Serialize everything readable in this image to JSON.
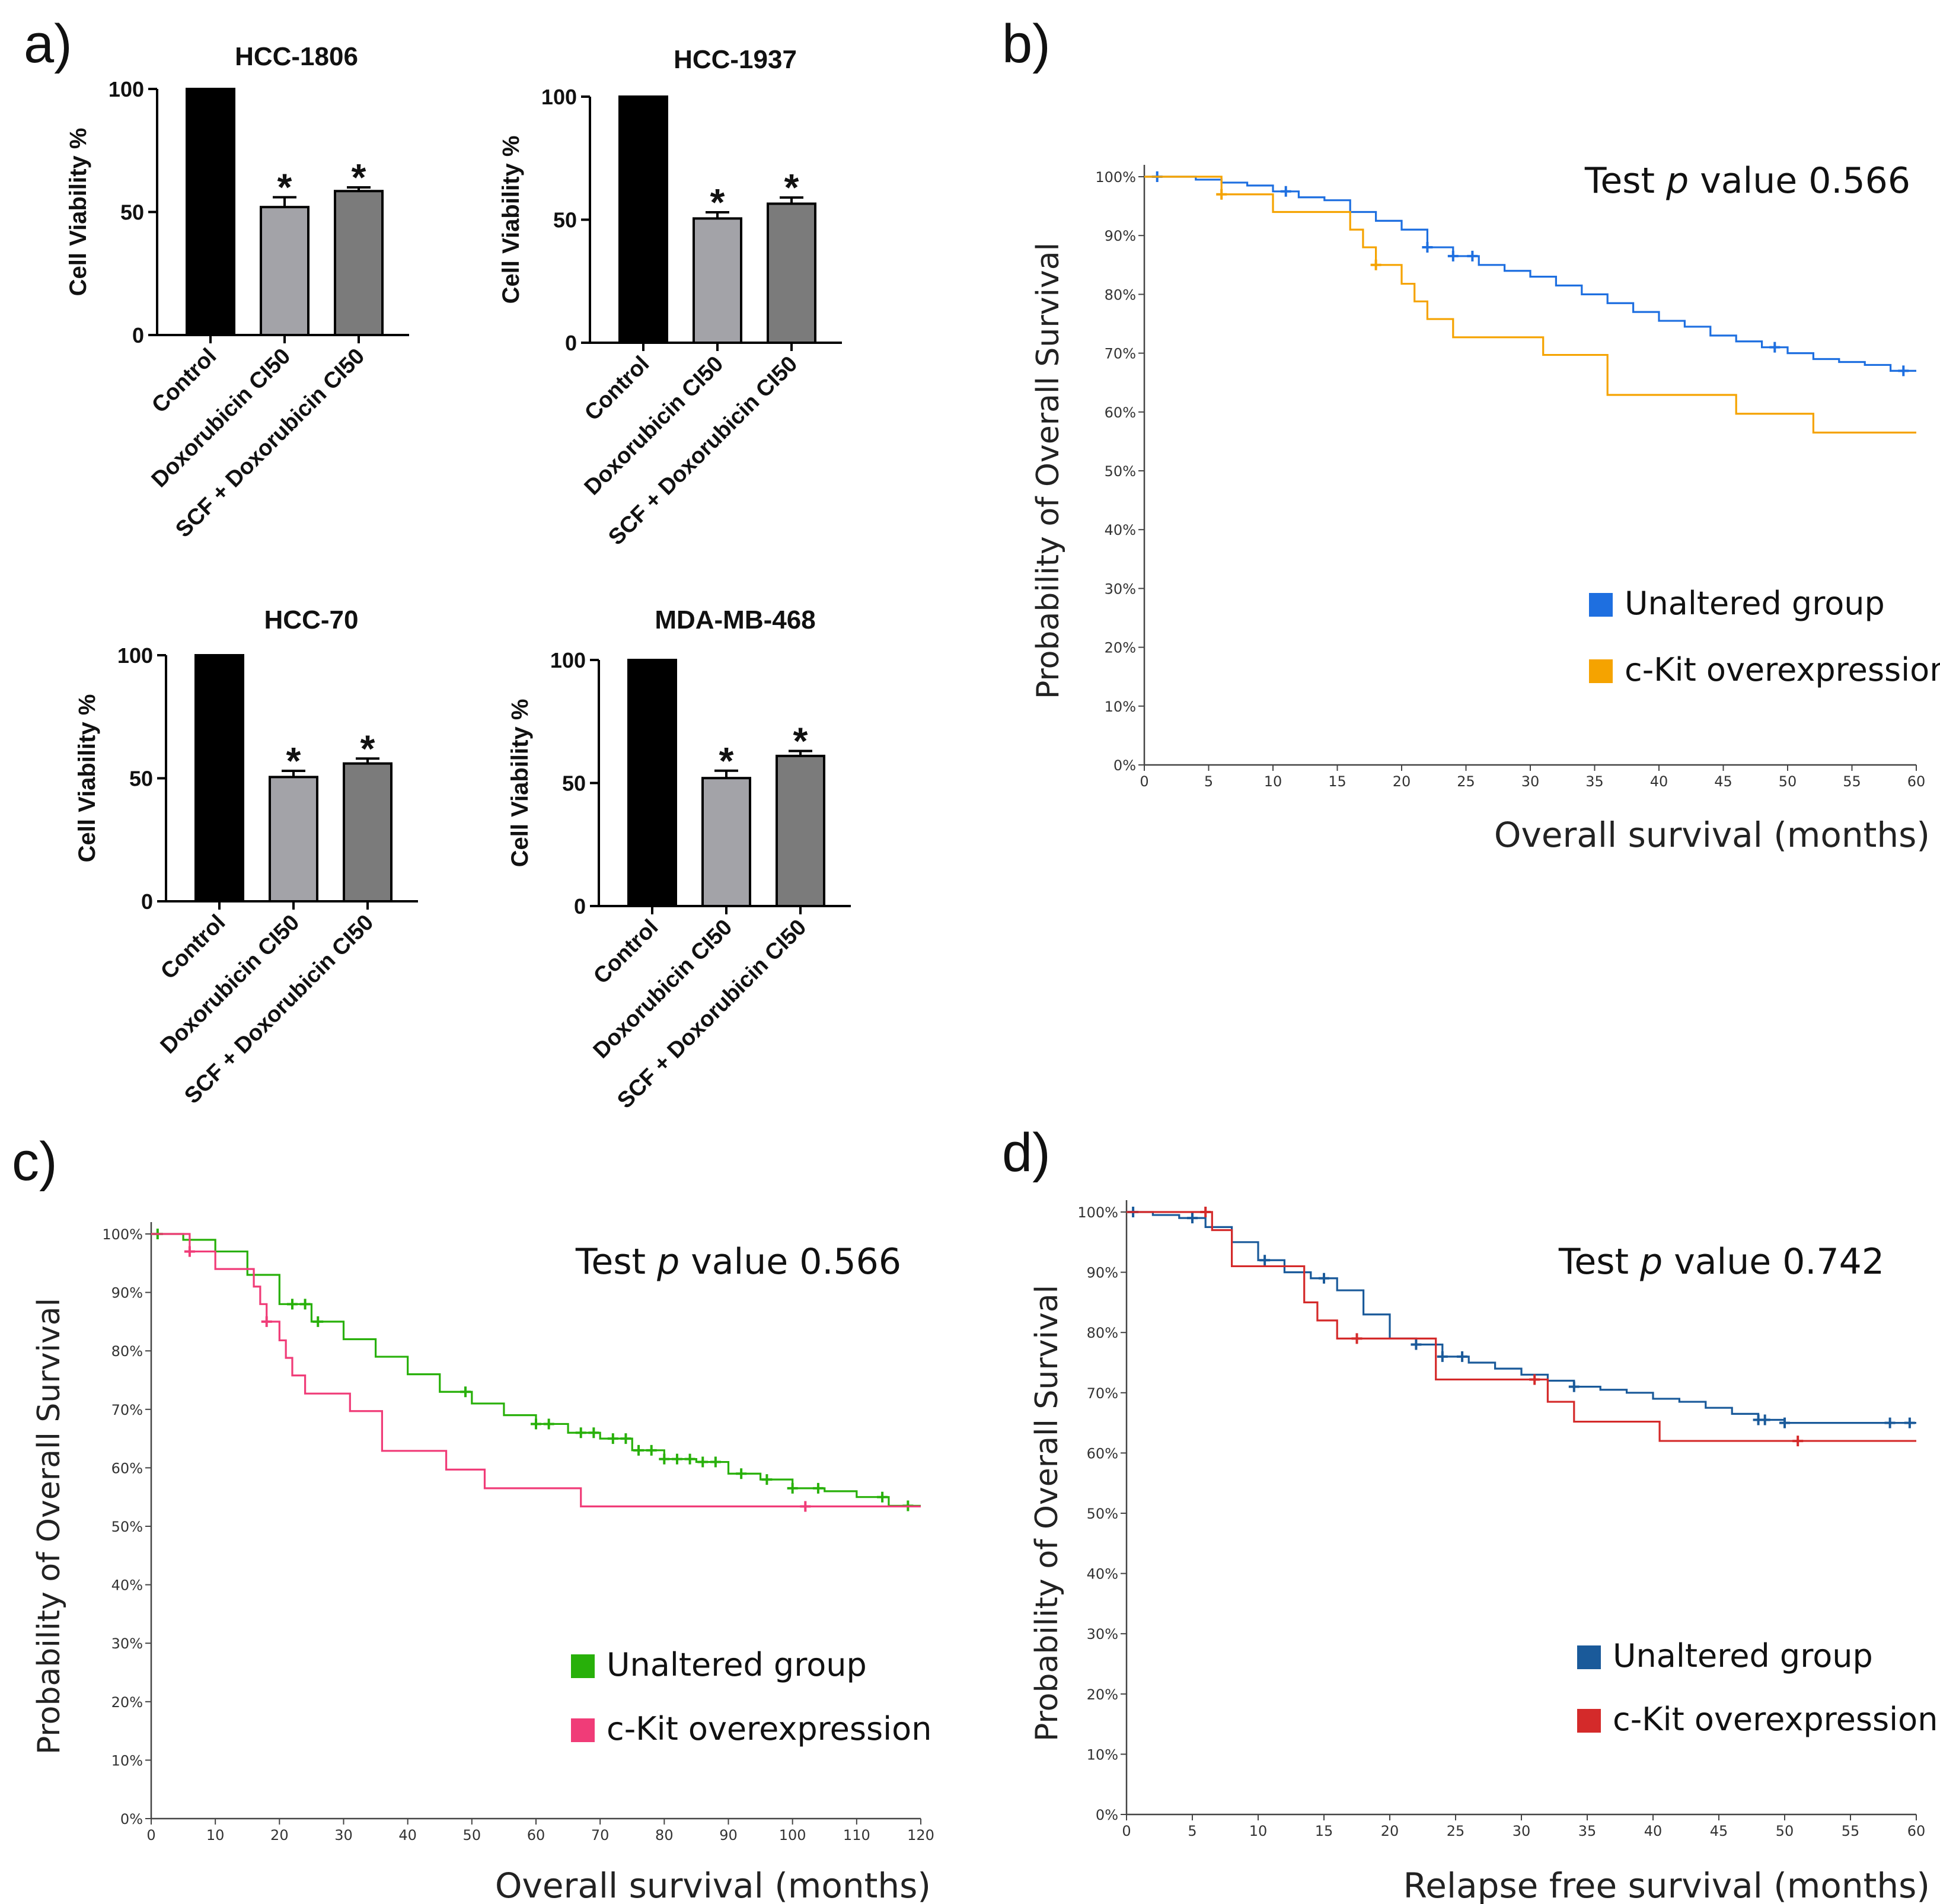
{
  "figure": {
    "labels": {
      "a": "a)",
      "b": "b)",
      "c": "c)",
      "d": "d)"
    }
  },
  "chart_data": [
    {
      "type": "bar",
      "panel": "a",
      "title": "HCC-1806",
      "ylabel": "Cell Viability %",
      "categories": [
        "Control",
        "Doxorubicin CI50",
        "SCF + Doxorubicin CI50"
      ],
      "values": [
        100,
        52,
        58.5
      ],
      "errors": [
        0,
        4,
        1.5
      ],
      "significant": [
        false,
        true,
        true
      ],
      "significance_marker": "*",
      "ylim": [
        0,
        100
      ],
      "yticks": [
        "0",
        "50",
        "100"
      ],
      "colors": [
        "#000000",
        "#a3a3a8",
        "#7b7b7b"
      ]
    },
    {
      "type": "bar",
      "panel": "a",
      "title": "HCC-1937",
      "ylabel": "Cell Viability %",
      "categories": [
        "Control",
        "Doxorubicin CI50",
        "SCF + Doxorubicin CI50"
      ],
      "values": [
        100,
        50.5,
        56.5
      ],
      "errors": [
        0,
        2.5,
        2.5
      ],
      "significant": [
        false,
        true,
        true
      ],
      "significance_marker": "*",
      "ylim": [
        0,
        100
      ],
      "yticks": [
        "0",
        "50",
        "100"
      ],
      "colors": [
        "#000000",
        "#a3a3a8",
        "#7b7b7b"
      ]
    },
    {
      "type": "bar",
      "panel": "a",
      "title": "HCC-70",
      "ylabel": "Cell Viability %",
      "categories": [
        "Control",
        "Doxorubicin CI50",
        "SCF + Doxorubicin CI50"
      ],
      "values": [
        100,
        50.5,
        56
      ],
      "errors": [
        0,
        2.5,
        2
      ],
      "significant": [
        false,
        true,
        true
      ],
      "significance_marker": "*",
      "ylim": [
        0,
        100
      ],
      "yticks": [
        "0",
        "50",
        "100"
      ],
      "colors": [
        "#000000",
        "#a3a3a8",
        "#7b7b7b"
      ]
    },
    {
      "type": "bar",
      "panel": "a",
      "title": "MDA-MB-468",
      "ylabel": "Cell Viability %",
      "categories": [
        "Control",
        "Doxorubicin CI50",
        "SCF + Doxorubicin CI50"
      ],
      "values": [
        100,
        52,
        61
      ],
      "errors": [
        0,
        3,
        2
      ],
      "significant": [
        false,
        true,
        true
      ],
      "significance_marker": "*",
      "ylim": [
        0,
        100
      ],
      "yticks": [
        "0",
        "50",
        "100"
      ],
      "colors": [
        "#000000",
        "#a3a3a8",
        "#7b7b7b"
      ]
    },
    {
      "type": "line",
      "panel": "b",
      "subtype": "kaplan-meier",
      "ylabel": "Probability of Overall Survival",
      "xlabel": "Overall survival (months)",
      "annotation": {
        "prefix": "Test ",
        "italic": "p",
        "suffix": " value 0.566"
      },
      "xlim": [
        0,
        60
      ],
      "ylim": [
        0,
        100
      ],
      "xticks": [
        "0",
        "5",
        "10",
        "15",
        "20",
        "25",
        "30",
        "35",
        "40",
        "45",
        "50",
        "55",
        "60"
      ],
      "yticks": [
        "0%",
        "10%",
        "20%",
        "30%",
        "40%",
        "50%",
        "60%",
        "70%",
        "80%",
        "90%",
        "100%"
      ],
      "legend_position": "right",
      "series": [
        {
          "name": "Unaltered group",
          "color": "#1e6fe0",
          "x": [
            0,
            2,
            4,
            6,
            8,
            10,
            12,
            14,
            16,
            18,
            20,
            22,
            24,
            26,
            28,
            30,
            32,
            34,
            36,
            38,
            40,
            42,
            44,
            46,
            48,
            50,
            52,
            54,
            56,
            58,
            60
          ],
          "y": [
            100,
            100,
            99.5,
            99,
            98.5,
            97.5,
            96.5,
            96,
            94,
            92.5,
            91,
            88,
            86.5,
            85,
            84,
            83,
            81.5,
            80,
            78.5,
            77,
            75.5,
            74.5,
            73,
            72,
            71,
            70,
            69,
            68.5,
            68,
            67,
            67
          ],
          "censor_x": [
            1,
            11,
            22,
            24,
            25.5,
            49,
            59
          ]
        },
        {
          "name": "c-Kit overexpression",
          "color": "#f5a300",
          "x": [
            0,
            5,
            6,
            10,
            15,
            16,
            17,
            18,
            20,
            21,
            22,
            24,
            30,
            31,
            35,
            36,
            45,
            46,
            52,
            60
          ],
          "y": [
            100,
            100,
            97,
            94,
            94,
            91,
            88,
            85,
            81.8,
            78.8,
            75.8,
            72.7,
            72.7,
            69.7,
            69.7,
            62.9,
            62.9,
            59.7,
            56.5,
            56.5
          ],
          "censor_x": [
            6,
            18
          ]
        }
      ]
    },
    {
      "type": "line",
      "panel": "c",
      "subtype": "kaplan-meier",
      "ylabel": "Probability of Overall Survival",
      "xlabel": "Overall survival (months)",
      "annotation": {
        "prefix": "Test ",
        "italic": "p",
        "suffix": " value 0.566"
      },
      "xlim": [
        0,
        120
      ],
      "ylim": [
        0,
        100
      ],
      "xticks": [
        "0",
        "10",
        "20",
        "30",
        "40",
        "50",
        "60",
        "70",
        "80",
        "90",
        "100",
        "110",
        "120"
      ],
      "yticks": [
        "0%",
        "10%",
        "20%",
        "30%",
        "40%",
        "50%",
        "60%",
        "70%",
        "80%",
        "90%",
        "100%"
      ],
      "legend_position": "bottom-right",
      "series": [
        {
          "name": "Unaltered group",
          "color": "#28b00a",
          "x": [
            0,
            5,
            10,
            15,
            20,
            25,
            30,
            35,
            40,
            45,
            50,
            55,
            60,
            65,
            70,
            75,
            80,
            85,
            90,
            95,
            100,
            105,
            110,
            115,
            120
          ],
          "y": [
            100,
            99,
            97,
            93,
            88,
            85,
            82,
            79,
            76,
            73,
            71,
            69,
            67.5,
            66,
            65,
            63,
            61.5,
            61,
            59,
            58,
            56.5,
            56,
            55,
            53.5,
            53.5
          ],
          "censor_x": [
            1,
            22,
            24,
            26,
            49,
            60,
            62,
            67,
            69,
            72,
            74,
            76,
            78,
            80,
            82,
            84,
            86,
            88,
            92,
            96,
            100,
            104,
            114,
            118
          ]
        },
        {
          "name": "c-Kit overexpression",
          "color": "#f03c78",
          "x": [
            0,
            5,
            6,
            10,
            15,
            16,
            17,
            18,
            20,
            21,
            22,
            24,
            30,
            31,
            35,
            36,
            45,
            46,
            52,
            60,
            67,
            80,
            100,
            120
          ],
          "y": [
            100,
            100,
            97,
            94,
            94,
            91,
            88,
            85,
            81.8,
            78.8,
            75.8,
            72.7,
            72.7,
            69.7,
            69.7,
            62.9,
            62.9,
            59.7,
            56.5,
            56.5,
            53.4,
            53.4,
            53.4,
            53.4
          ],
          "censor_x": [
            6,
            18,
            102
          ]
        }
      ]
    },
    {
      "type": "line",
      "panel": "d",
      "subtype": "kaplan-meier",
      "ylabel": "Probability of Overall Survival",
      "xlabel": "Relapse free survival (months)",
      "annotation": {
        "prefix": "Test ",
        "italic": "p",
        "suffix": " value 0.742"
      },
      "xlim": [
        0,
        60
      ],
      "ylim": [
        0,
        100
      ],
      "xticks": [
        "0",
        "5",
        "10",
        "15",
        "20",
        "25",
        "30",
        "35",
        "40",
        "45",
        "50",
        "55",
        "60"
      ],
      "yticks": [
        "0%",
        "10%",
        "20%",
        "30%",
        "40%",
        "50%",
        "60%",
        "70%",
        "80%",
        "90%",
        "100%"
      ],
      "legend_position": "bottom-right",
      "series": [
        {
          "name": "Unaltered group",
          "color": "#1a5a9a",
          "x": [
            0,
            2,
            4,
            6,
            8,
            10,
            12,
            14,
            16,
            18,
            20,
            22,
            24,
            26,
            28,
            30,
            32,
            34,
            36,
            38,
            40,
            42,
            44,
            46,
            48,
            50,
            52,
            54,
            56,
            58,
            60
          ],
          "y": [
            100,
            99.5,
            99,
            97.5,
            95,
            92,
            90,
            89,
            87,
            83,
            79,
            78,
            76,
            75,
            74,
            73,
            72,
            71,
            70.5,
            70,
            69,
            68.5,
            67.5,
            66.5,
            65.5,
            65,
            65,
            65,
            65,
            65,
            65
          ],
          "censor_x": [
            0.5,
            5,
            10.5,
            15,
            22,
            24,
            25.5,
            34,
            48,
            48.5,
            50,
            58,
            59.5
          ]
        },
        {
          "name": "c-Kit overexpression",
          "color": "#d42a2a",
          "x": [
            0,
            5.8,
            6.5,
            8,
            11,
            13.5,
            14.5,
            16,
            18,
            23.5,
            30,
            32,
            34,
            40.5,
            45,
            60
          ],
          "y": [
            100,
            100,
            97,
            91,
            91,
            85,
            82,
            79,
            79,
            72.2,
            72.2,
            68.5,
            65.2,
            62,
            62,
            62
          ],
          "censor_x": [
            6,
            17.5,
            31,
            51
          ]
        }
      ]
    }
  ]
}
